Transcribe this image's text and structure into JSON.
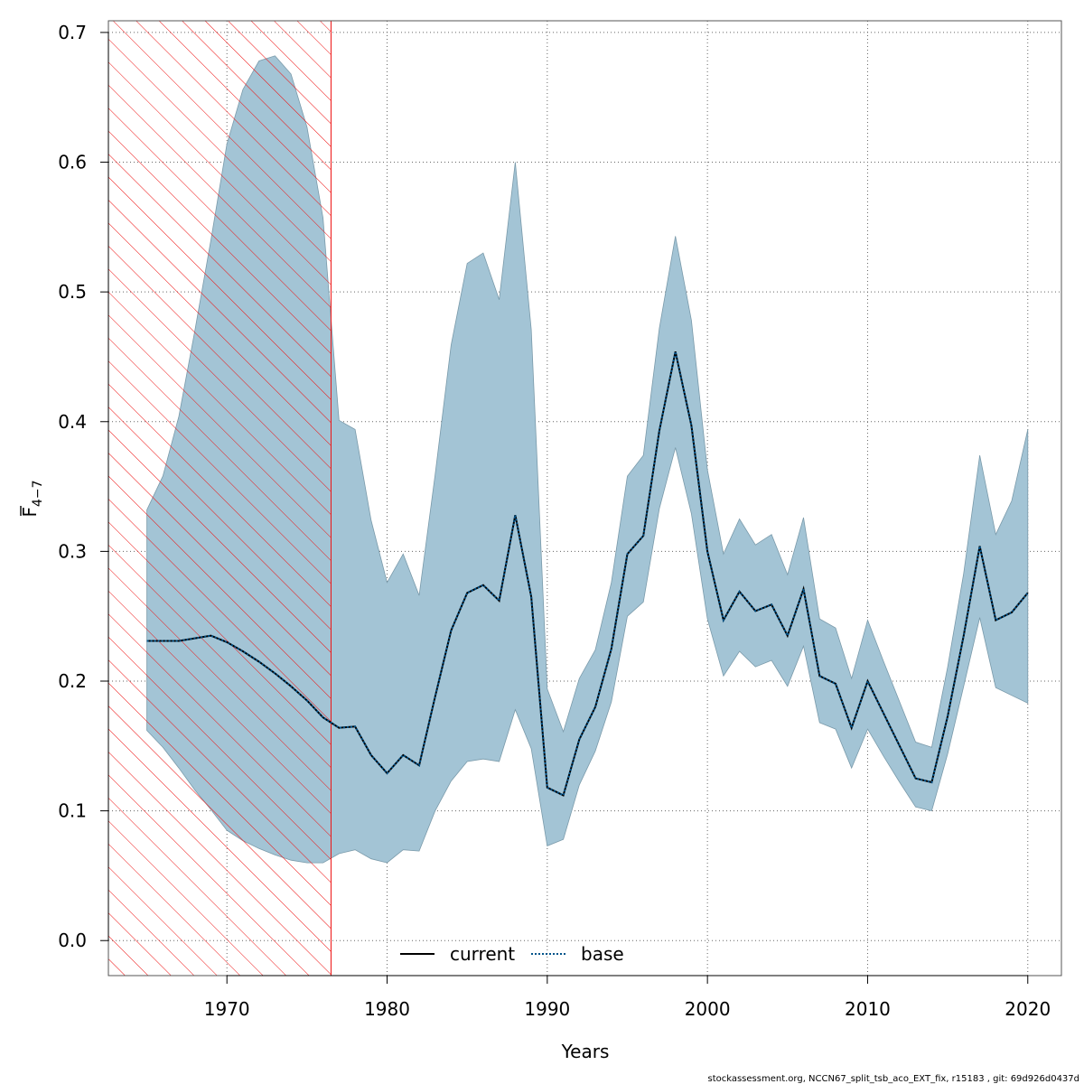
{
  "chart_data": {
    "type": "line",
    "title": "",
    "xlabel": "Years",
    "ylabel_main": "F",
    "ylabel_sub": "4−7",
    "xlim": [
      1962.6,
      2022.1
    ],
    "ylim": [
      -0.027,
      0.709
    ],
    "x_ticks": [
      1970,
      1980,
      1990,
      2000,
      2010,
      2020
    ],
    "y_ticks": [
      0.0,
      0.1,
      0.2,
      0.3,
      0.4,
      0.5,
      0.6,
      0.7
    ],
    "y_tick_labels": [
      "0.0",
      "0.1",
      "0.2",
      "0.3",
      "0.4",
      "0.5",
      "0.6",
      "0.7"
    ],
    "grid": true,
    "legend_position": "bottom-center",
    "legend": [
      {
        "label": "current",
        "color": "#000000",
        "style": "solid"
      },
      {
        "label": "base",
        "color": "#00538a",
        "style": "dotted"
      }
    ],
    "hatched_region": {
      "x_from": 1962.6,
      "x_to": 1976.5,
      "color": "#ee1111"
    },
    "band_color": "#a3c4d5",
    "band_edge_color": "#7a9aaa",
    "x": [
      1965,
      1966,
      1967,
      1968,
      1969,
      1970,
      1971,
      1972,
      1973,
      1974,
      1975,
      1976,
      1977,
      1978,
      1979,
      1980,
      1981,
      1982,
      1983,
      1984,
      1985,
      1986,
      1987,
      1988,
      1989,
      1990,
      1991,
      1992,
      1993,
      1994,
      1995,
      1996,
      1997,
      1998,
      1999,
      2000,
      2001,
      2002,
      2003,
      2004,
      2005,
      2006,
      2007,
      2008,
      2009,
      2010,
      2011,
      2012,
      2013,
      2014,
      2015,
      2016,
      2017,
      2018,
      2019,
      2020
    ],
    "series": [
      {
        "name": "base",
        "color": "#00538a",
        "style": "dotted",
        "values": [
          0.231,
          0.231,
          0.231,
          0.233,
          0.235,
          0.23,
          0.223,
          0.215,
          0.206,
          0.196,
          0.185,
          0.172,
          0.164,
          0.165,
          0.143,
          0.129,
          0.143,
          0.135,
          0.188,
          0.239,
          0.268,
          0.274,
          0.262,
          0.328,
          0.265,
          0.118,
          0.112,
          0.155,
          0.18,
          0.225,
          0.298,
          0.312,
          0.393,
          0.454,
          0.397,
          0.3,
          0.247,
          0.269,
          0.254,
          0.259,
          0.235,
          0.271,
          0.204,
          0.198,
          0.164,
          0.2,
          0.175,
          0.15,
          0.125,
          0.122,
          0.173,
          0.235,
          0.304,
          0.247,
          0.253,
          0.268
        ],
        "lower": [
          0.162,
          0.149,
          0.133,
          0.116,
          0.101,
          0.085,
          0.077,
          0.071,
          0.066,
          0.062,
          0.06,
          0.06,
          0.067,
          0.07,
          0.063,
          0.06,
          0.07,
          0.069,
          0.1,
          0.123,
          0.138,
          0.14,
          0.138,
          0.178,
          0.148,
          0.073,
          0.078,
          0.12,
          0.146,
          0.184,
          0.25,
          0.261,
          0.333,
          0.38,
          0.329,
          0.248,
          0.204,
          0.223,
          0.211,
          0.216,
          0.196,
          0.227,
          0.168,
          0.163,
          0.133,
          0.163,
          0.142,
          0.122,
          0.103,
          0.1,
          0.144,
          0.196,
          0.249,
          0.195,
          0.189,
          0.183
        ],
        "upper": [
          0.332,
          0.358,
          0.404,
          0.47,
          0.54,
          0.614,
          0.656,
          0.678,
          0.682,
          0.668,
          0.627,
          0.557,
          0.401,
          0.394,
          0.324,
          0.276,
          0.298,
          0.266,
          0.359,
          0.459,
          0.522,
          0.53,
          0.494,
          0.6,
          0.471,
          0.194,
          0.161,
          0.202,
          0.224,
          0.276,
          0.358,
          0.374,
          0.472,
          0.543,
          0.478,
          0.363,
          0.298,
          0.325,
          0.305,
          0.313,
          0.282,
          0.326,
          0.248,
          0.241,
          0.202,
          0.247,
          0.215,
          0.184,
          0.153,
          0.149,
          0.211,
          0.283,
          0.374,
          0.313,
          0.339,
          0.394
        ]
      }
    ]
  },
  "footer_text": "stockassessment.org, NCCN67_split_tsb_aco_EXT_fix, r15183 , git: 69d926d0437d"
}
